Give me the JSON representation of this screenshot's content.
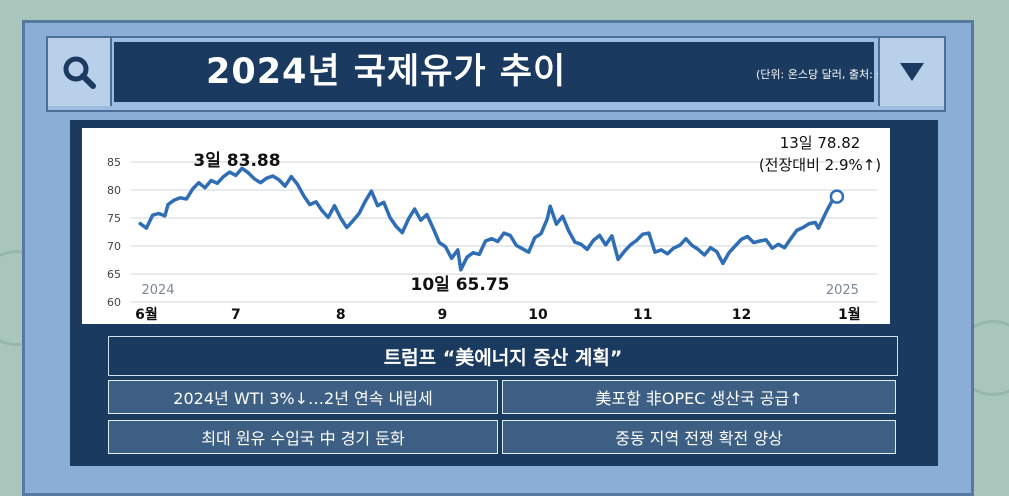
{
  "title": "2024년 국제유가 추이",
  "source_note": "(단위: 온스당 달러, 출처: 블룸버그)",
  "icons": {
    "search": "search-icon",
    "dropdown": "dropdown-triangle-icon"
  },
  "colors": {
    "line": "#2f6eb5",
    "navy": "#1b3a5f",
    "frame": "#8aaed6"
  },
  "chart_data": {
    "type": "line",
    "y_ticks": [
      "85",
      "80",
      "75",
      "70",
      "65",
      "60"
    ],
    "ylim": [
      60,
      85
    ],
    "x_months": [
      {
        "label": "6월",
        "day": 0
      },
      {
        "label": "7",
        "day": 29
      },
      {
        "label": "8",
        "day": 63
      },
      {
        "label": "9",
        "day": 96
      },
      {
        "label": "10",
        "day": 127
      },
      {
        "label": "11",
        "day": 161
      },
      {
        "label": "12",
        "day": 193
      },
      {
        "label": "1월",
        "day": 228
      }
    ],
    "year_labels": [
      {
        "text": "2024",
        "day": 0
      },
      {
        "text": "2025",
        "day": 222
      }
    ],
    "annotations": {
      "high": "3일 83.88",
      "low": "10일 65.75",
      "end_line1": "13일 78.82",
      "end_line2": "(전장대비 2.9%↑)"
    },
    "grid": true,
    "series": [
      {
        "values": [
          [
            -3,
            74.0
          ],
          [
            -1,
            73.2
          ],
          [
            1,
            75.5
          ],
          [
            3,
            75.8
          ],
          [
            5,
            75.4
          ],
          [
            6,
            77.4
          ],
          [
            8,
            78.2
          ],
          [
            10,
            78.6
          ],
          [
            12,
            78.4
          ],
          [
            14,
            80.2
          ],
          [
            16,
            81.3
          ],
          [
            18,
            80.4
          ],
          [
            20,
            81.7
          ],
          [
            22,
            81.2
          ],
          [
            24,
            82.4
          ],
          [
            26,
            83.2
          ],
          [
            28,
            82.6
          ],
          [
            30,
            83.88
          ],
          [
            32,
            83.1
          ],
          [
            34,
            82.0
          ],
          [
            36,
            81.3
          ],
          [
            38,
            82.1
          ],
          [
            40,
            82.5
          ],
          [
            42,
            81.8
          ],
          [
            44,
            80.7
          ],
          [
            46,
            82.4
          ],
          [
            48,
            81.0
          ],
          [
            50,
            79.0
          ],
          [
            52,
            77.4
          ],
          [
            54,
            77.9
          ],
          [
            56,
            76.3
          ],
          [
            58,
            75.1
          ],
          [
            60,
            77.2
          ],
          [
            62,
            75.0
          ],
          [
            64,
            73.3
          ],
          [
            66,
            74.5
          ],
          [
            68,
            75.8
          ],
          [
            70,
            78.0
          ],
          [
            72,
            79.8
          ],
          [
            74,
            77.2
          ],
          [
            76,
            77.8
          ],
          [
            78,
            75.1
          ],
          [
            80,
            73.5
          ],
          [
            82,
            72.4
          ],
          [
            84,
            74.8
          ],
          [
            86,
            76.6
          ],
          [
            88,
            74.6
          ],
          [
            90,
            75.6
          ],
          [
            92,
            73.2
          ],
          [
            94,
            70.6
          ],
          [
            96,
            69.9
          ],
          [
            98,
            67.8
          ],
          [
            100,
            69.3
          ],
          [
            101,
            65.75
          ],
          [
            103,
            68.0
          ],
          [
            105,
            68.8
          ],
          [
            107,
            68.5
          ],
          [
            109,
            70.9
          ],
          [
            111,
            71.3
          ],
          [
            113,
            70.8
          ],
          [
            115,
            72.3
          ],
          [
            117,
            71.9
          ],
          [
            119,
            70.1
          ],
          [
            121,
            69.5
          ],
          [
            123,
            68.9
          ],
          [
            125,
            71.5
          ],
          [
            127,
            72.2
          ],
          [
            129,
            74.8
          ],
          [
            130,
            77.1
          ],
          [
            132,
            73.9
          ],
          [
            134,
            75.3
          ],
          [
            136,
            72.7
          ],
          [
            138,
            70.7
          ],
          [
            140,
            70.3
          ],
          [
            142,
            69.4
          ],
          [
            144,
            71.0
          ],
          [
            146,
            71.9
          ],
          [
            148,
            70.2
          ],
          [
            150,
            71.8
          ],
          [
            152,
            67.6
          ],
          [
            154,
            69.0
          ],
          [
            156,
            70.2
          ],
          [
            158,
            71.0
          ],
          [
            160,
            72.1
          ],
          [
            162,
            72.3
          ],
          [
            164,
            68.9
          ],
          [
            166,
            69.3
          ],
          [
            168,
            68.6
          ],
          [
            170,
            69.6
          ],
          [
            172,
            70.1
          ],
          [
            174,
            71.3
          ],
          [
            176,
            70.1
          ],
          [
            178,
            69.4
          ],
          [
            180,
            68.4
          ],
          [
            182,
            69.7
          ],
          [
            184,
            69.0
          ],
          [
            186,
            66.9
          ],
          [
            188,
            68.8
          ],
          [
            190,
            70.0
          ],
          [
            192,
            71.2
          ],
          [
            194,
            71.7
          ],
          [
            196,
            70.6
          ],
          [
            198,
            70.9
          ],
          [
            200,
            71.1
          ],
          [
            202,
            69.6
          ],
          [
            204,
            70.3
          ],
          [
            206,
            69.7
          ],
          [
            208,
            71.3
          ],
          [
            210,
            72.8
          ],
          [
            212,
            73.3
          ],
          [
            214,
            74.0
          ],
          [
            216,
            74.2
          ],
          [
            217,
            73.2
          ],
          [
            220,
            76.6
          ],
          [
            222,
            78.6
          ],
          [
            223,
            78.82
          ]
        ]
      }
    ]
  },
  "headline": "트럼프 “美에너지 증산 계획”",
  "bullets": [
    "2024년 WTI 3%↓…2년 연속 내림세",
    "美포함 非OPEC 생산국 공급↑",
    "최대 원유 수입국 中 경기 둔화",
    "중동 지역 전쟁 확전 양상"
  ]
}
